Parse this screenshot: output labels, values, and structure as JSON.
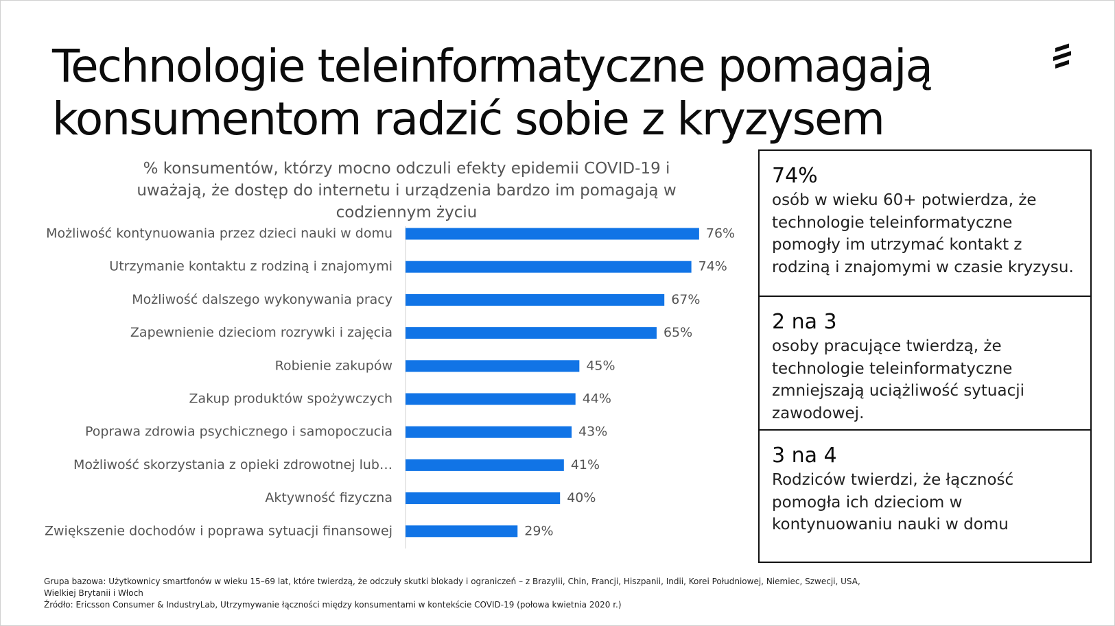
{
  "title_lines": [
    "Technologie teleinformatyczne pomagają",
    "konsumentom radzić sobie z kryzysem"
  ],
  "chart_data": {
    "type": "bar",
    "orientation": "horizontal",
    "title": "% konsumentów, którzy mocno odczuli efekty epidemii COVID-19 i uważają, że dostęp do internetu i urządzenia bardzo im pomagają w codziennym życiu",
    "categories": [
      "Możliwość kontynuowania przez dzieci nauki w domu",
      "Utrzymanie kontaktu z rodziną i znajomymi",
      "Możliwość dalszego wykonywania pracy",
      "Zapewnienie dzieciom rozrywki i zajęcia",
      "Robienie zakupów",
      "Zakup produktów spożywczych",
      "Poprawa zdrowia psychicznego i samopoczucia",
      "Możliwość skorzystania z opieki zdrowotnej lub…",
      "Aktywność fizyczna",
      "Zwiększenie dochodów i poprawa sytuacji finansowej"
    ],
    "values": [
      76,
      74,
      67,
      65,
      45,
      44,
      43,
      41,
      40,
      29
    ],
    "value_labels": [
      "76%",
      "74%",
      "67%",
      "65%",
      "45%",
      "44%",
      "43%",
      "41%",
      "40%",
      "29%"
    ],
    "color": "#1174e6"
  },
  "stats": [
    {
      "headline": "74%",
      "text": "osób w wieku 60+ potwierdza, że technologie teleinformatyczne pomogły im utrzymać kontakt z rodziną i znajomymi w czasie kryzysu."
    },
    {
      "headline": "2 na 3",
      "text": "osoby pracujące twierdzą, że technologie teleinformatyczne zmniejszają uciążliwość sytuacji zawodowej."
    },
    {
      "headline": "3 na 4",
      "text": "Rodziców twierdzi, że łączność pomogła ich dzieciom w kontynuowaniu nauki w domu"
    }
  ],
  "footnote": [
    "Grupa bazowa: Użytkownicy smartfonów w wieku 15–69 lat, które twierdzą, że odczuły skutki blokady i ograniczeń – z Brazylii, Chin, Francji, Hiszpanii, Indii, Korei Południowej, Niemiec, Szwecji, USA, Wielkiej Brytanii i Włoch",
    "Źródło: Ericsson Consumer & IndustryLab, Utrzymywanie łączności między konsumentami w kontekście COVID-19 (połowa kwietnia 2020 r.)"
  ]
}
